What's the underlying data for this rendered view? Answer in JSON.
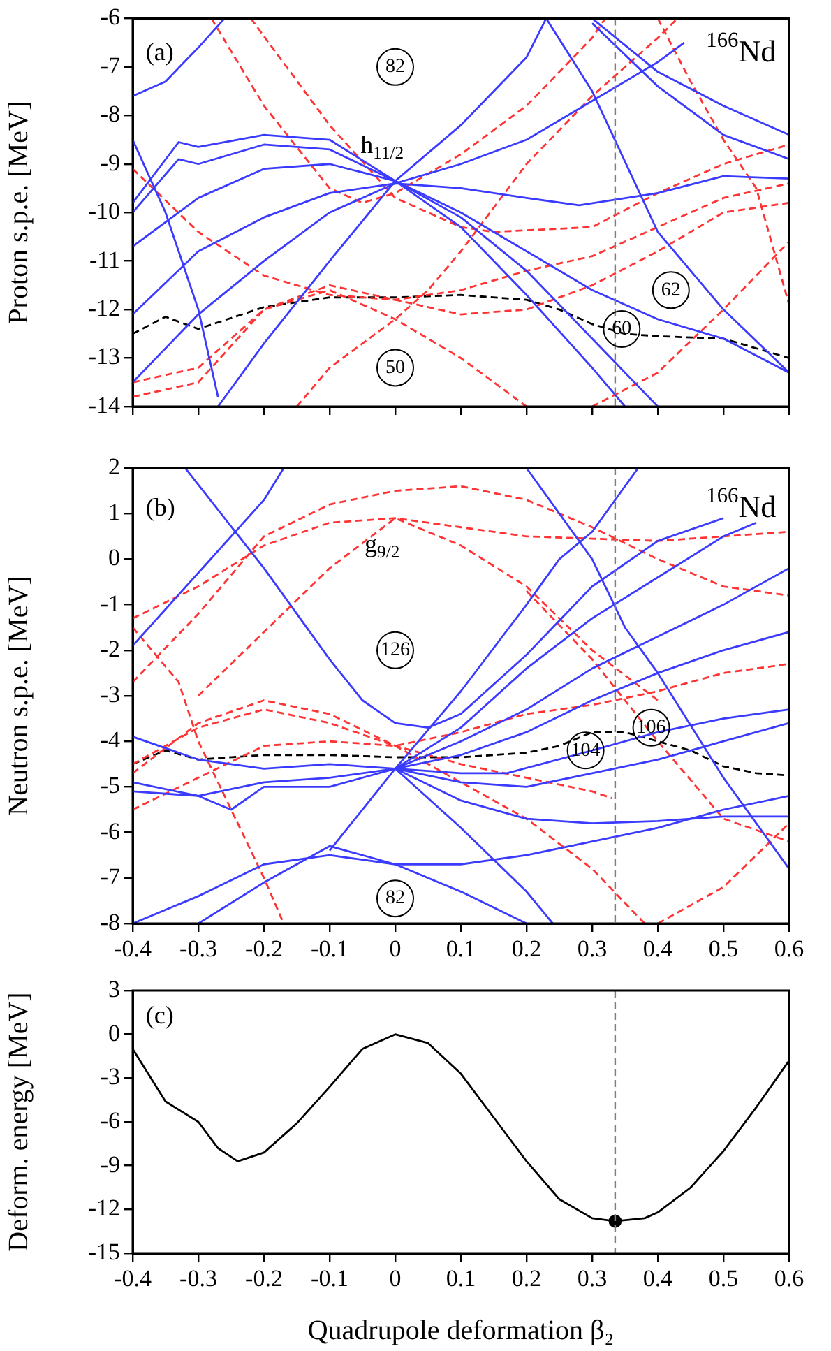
{
  "chart_data": [
    {
      "type": "line",
      "ylabel": "Proton s.p.e. [MeV]",
      "xlim": [
        -0.4,
        0.6
      ],
      "xticks": [
        -0.4,
        -0.3,
        -0.2,
        -0.1,
        0,
        0.1,
        0.2,
        0.3,
        0.4,
        0.5,
        0.6
      ],
      "ylim": [
        -14,
        -6
      ],
      "yticks": [
        -14,
        -13,
        -12,
        -11,
        -10,
        -9,
        -8,
        -7,
        -6
      ],
      "tick_labels": "y",
      "marker": "none",
      "series": [
        {
          "color": "#3b3bff",
          "line_style": "solid",
          "x": [
            -0.4,
            -0.33,
            -0.3,
            -0.2,
            -0.1,
            0,
            0.1,
            0.2,
            0.3,
            0.35
          ],
          "values": [
            -9.8,
            -8.55,
            -8.65,
            -8.4,
            -8.5,
            -9.35,
            -10.3,
            -11.7,
            -13.2,
            -14
          ]
        },
        {
          "color": "#3b3bff",
          "line_style": "solid",
          "x": [
            -0.4,
            -0.33,
            -0.3,
            -0.2,
            -0.1,
            0,
            0.1,
            0.2,
            0.3,
            0.4
          ],
          "values": [
            -10,
            -8.9,
            -9,
            -8.6,
            -8.7,
            -9.35,
            -10.1,
            -11.2,
            -12.6,
            -14
          ]
        },
        {
          "color": "#3b3bff",
          "line_style": "solid",
          "x": [
            -0.4,
            -0.3,
            -0.2,
            -0.1,
            0,
            0.1,
            0.2,
            0.3,
            0.4,
            0.5,
            0.6
          ],
          "values": [
            -10.7,
            -9.7,
            -9.1,
            -9,
            -9.35,
            -10,
            -10.8,
            -11.6,
            -12.2,
            -12.6,
            -13.3
          ]
        },
        {
          "color": "#3b3bff",
          "line_style": "solid",
          "x": [
            -0.4,
            -0.3,
            -0.2,
            -0.1,
            0,
            0.1,
            0.2,
            0.28,
            0.4,
            0.5,
            0.6
          ],
          "values": [
            -12.1,
            -10.8,
            -10.1,
            -9.6,
            -9.4,
            -9.5,
            -9.7,
            -9.85,
            -9.6,
            -9.25,
            -9.3
          ]
        },
        {
          "color": "#3b3bff",
          "line_style": "solid",
          "x": [
            -0.4,
            -0.3,
            -0.2,
            -0.1,
            0,
            0.1,
            0.2,
            0.3,
            0.4,
            0.44
          ],
          "values": [
            -13.5,
            -12.1,
            -11,
            -10,
            -9.4,
            -9,
            -8.5,
            -7.7,
            -6.9,
            -6.5
          ]
        },
        {
          "color": "#3b3bff",
          "line_style": "solid",
          "x": [
            -0.27,
            -0.2,
            -0.1,
            0,
            0.1,
            0.2,
            0.23
          ],
          "values": [
            -14,
            -12.7,
            -11,
            -9.35,
            -8.2,
            -6.8,
            -6
          ]
        },
        {
          "color": "#3b3bff",
          "line_style": "solid",
          "x": [
            -0.4,
            -0.35,
            -0.3,
            -0.27
          ],
          "values": [
            -8.5,
            -10,
            -12,
            -13.8
          ]
        },
        {
          "color": "#3b3bff",
          "line_style": "solid",
          "x": [
            -0.4,
            -0.35,
            -0.3,
            -0.26
          ],
          "values": [
            -7.6,
            -7.3,
            -6.6,
            -6
          ]
        },
        {
          "color": "#3b3bff",
          "line_style": "solid",
          "x": [
            0.23,
            0.3,
            0.4,
            0.5,
            0.6
          ],
          "values": [
            -6,
            -7.5,
            -10.4,
            -12,
            -13.3
          ]
        },
        {
          "color": "#3b3bff",
          "line_style": "solid",
          "x": [
            0.3,
            0.4,
            0.5,
            0.6
          ],
          "values": [
            -6,
            -7.1,
            -7.8,
            -8.4
          ]
        },
        {
          "color": "#3b3bff",
          "line_style": "solid",
          "x": [
            0.3,
            0.4,
            0.5,
            0.6
          ],
          "values": [
            -6.1,
            -7.4,
            -8.4,
            -8.9
          ]
        },
        {
          "color": "#ff3333",
          "line_style": "dashed",
          "x": [
            -0.28,
            -0.2,
            -0.1,
            -0.05,
            0,
            0.1,
            0.2,
            0.3,
            0.32
          ],
          "values": [
            -6,
            -7.8,
            -9.5,
            -9.8,
            -9.6,
            -8.8,
            -7.8,
            -6.4,
            -6
          ]
        },
        {
          "color": "#ff3333",
          "line_style": "dashed",
          "x": [
            -0.22,
            -0.1,
            0,
            0.1,
            0.15,
            0.3,
            0.4,
            0.5,
            0.6
          ],
          "values": [
            -6,
            -8.2,
            -9.7,
            -10.3,
            -10.4,
            -10.3,
            -9.6,
            -9,
            -8.6
          ]
        },
        {
          "color": "#ff3333",
          "line_style": "dashed",
          "x": [
            -0.4,
            -0.3,
            -0.2,
            -0.1,
            0,
            0.1,
            0.2,
            0.3,
            0.4,
            0.5,
            0.6
          ],
          "values": [
            -9.1,
            -10.4,
            -11.3,
            -11.7,
            -11.8,
            -11.6,
            -11.2,
            -10.9,
            -10.3,
            -9.7,
            -9.4
          ]
        },
        {
          "color": "#ff3333",
          "line_style": "dashed",
          "x": [
            -0.4,
            -0.3,
            -0.2,
            -0.1,
            0,
            0.1,
            0.2,
            0.3,
            0.4,
            0.5,
            0.6
          ],
          "values": [
            -13.8,
            -13.5,
            -12,
            -11.5,
            -11.8,
            -12.1,
            -12,
            -11.5,
            -10.8,
            -10,
            -9.8
          ]
        },
        {
          "color": "#ff3333",
          "line_style": "dashed",
          "x": [
            -0.4,
            -0.3,
            -0.2,
            -0.1,
            0,
            0.1,
            0.2
          ],
          "values": [
            -13.5,
            -13.2,
            -12,
            -11.6,
            -12.2,
            -13,
            -14
          ]
        },
        {
          "color": "#ff3333",
          "line_style": "dashed",
          "x": [
            -0.15,
            -0.1,
            0,
            0.05,
            0.1,
            0.2,
            0.3,
            0.4,
            0.43
          ],
          "values": [
            -14,
            -13.2,
            -12.2,
            -11.6,
            -10.8,
            -9,
            -7.6,
            -6.4,
            -6
          ]
        },
        {
          "color": "#ff3333",
          "line_style": "dashed",
          "x": [
            0.3,
            0.4,
            0.5,
            0.6
          ],
          "values": [
            -14,
            -13.3,
            -12,
            -10.6
          ]
        },
        {
          "color": "#ff3333",
          "line_style": "dashed",
          "x": [
            0.4,
            0.45,
            0.5,
            0.55,
            0.6
          ],
          "values": [
            -6,
            -7.3,
            -8.5,
            -9.5,
            -11.9
          ]
        },
        {
          "color": "#000000",
          "line_style": "dashed",
          "x": [
            -0.4,
            -0.35,
            -0.3,
            -0.2,
            -0.1,
            0,
            0.1,
            0.2,
            0.25,
            0.3,
            0.35,
            0.4,
            0.5,
            0.6
          ],
          "values": [
            -12.5,
            -12.15,
            -12.4,
            -11.95,
            -11.75,
            -11.75,
            -11.7,
            -11.8,
            -12,
            -12.3,
            -12.5,
            -12.55,
            -12.6,
            -13
          ]
        }
      ],
      "ref_lines": [
        {
          "axis": "x",
          "value": 0.335,
          "color": "#808080",
          "line_style": "dashed"
        }
      ],
      "annotations": [
        "(a)",
        {
          "text": "82",
          "x": 0,
          "y": -7
        },
        "$^{166}$Nd",
        "h$_{11/2}$",
        {
          "text": "50",
          "x": 0,
          "y": -13.2
        },
        {
          "text": "60",
          "x": 0.345,
          "y": -12.4
        },
        {
          "text": "62",
          "x": 0.42,
          "y": -11.6
        }
      ]
    },
    {
      "type": "line",
      "ylabel": "Neutron s.p.e. [MeV]",
      "xlim": [
        -0.4,
        0.6
      ],
      "xticks": [
        -0.4,
        -0.3,
        -0.2,
        -0.1,
        0,
        0.1,
        0.2,
        0.3,
        0.4,
        0.5,
        0.6
      ],
      "ylim": [
        -8,
        2
      ],
      "yticks": [
        -8,
        -7,
        -6,
        -5,
        -4,
        -3,
        -2,
        -1,
        0,
        1,
        2
      ],
      "marker": "none",
      "series": [
        {
          "color": "#3b3bff",
          "line_style": "solid",
          "x": [
            -0.4,
            -0.3,
            -0.2,
            -0.1,
            0,
            0.1,
            0.17,
            0.3,
            0.4,
            0.5,
            0.6
          ],
          "values": [
            -3.9,
            -4.4,
            -4.6,
            -4.5,
            -4.6,
            -4.7,
            -4.7,
            -4.2,
            -3.8,
            -3.5,
            -3.3
          ]
        },
        {
          "color": "#3b3bff",
          "line_style": "solid",
          "x": [
            -0.4,
            -0.3,
            -0.25,
            -0.2,
            -0.1,
            0,
            0.1,
            0.2,
            0.3,
            0.4,
            0.5,
            0.6
          ],
          "values": [
            -4.9,
            -5.2,
            -5.5,
            -5,
            -5,
            -4.6,
            -4.9,
            -5,
            -4.7,
            -4.4,
            -4,
            -3.6
          ]
        },
        {
          "color": "#3b3bff",
          "line_style": "solid",
          "x": [
            -0.4,
            -0.3,
            -0.2,
            -0.1,
            0,
            0.1,
            0.2,
            0.3,
            0.4,
            0.5,
            0.6
          ],
          "values": [
            -5.1,
            -5.2,
            -4.9,
            -4.8,
            -4.6,
            -5.3,
            -5.7,
            -5.8,
            -5.75,
            -5.65,
            -5.65
          ]
        },
        {
          "color": "#3b3bff",
          "line_style": "solid",
          "x": [
            0,
            0.1,
            0.2,
            0.3,
            0.4,
            0.5,
            0.55
          ],
          "values": [
            -4.6,
            -3.7,
            -2.4,
            -1.3,
            -0.4,
            0.5,
            0.8
          ]
        },
        {
          "color": "#3b3bff",
          "line_style": "solid",
          "x": [
            0,
            0.1,
            0.2,
            0.3,
            0.4,
            0.5,
            0.6
          ],
          "values": [
            -4.6,
            -4,
            -3.3,
            -2.4,
            -1.7,
            -1,
            -0.2
          ]
        },
        {
          "color": "#3b3bff",
          "line_style": "solid",
          "x": [
            0,
            0.1,
            0.2,
            0.3,
            0.4,
            0.5,
            0.6
          ],
          "values": [
            -4.6,
            -4.3,
            -3.8,
            -3.1,
            -2.5,
            -2,
            -1.6
          ]
        },
        {
          "color": "#3b3bff",
          "line_style": "solid",
          "x": [
            -0.1,
            0,
            0.1,
            0.2,
            0.25,
            0.3,
            0.37
          ],
          "values": [
            -6.4,
            -4.6,
            -2.9,
            -1,
            0,
            0.6,
            2
          ]
        },
        {
          "color": "#3b3bff",
          "line_style": "solid",
          "x": [
            -0.32,
            -0.2,
            -0.1,
            -0.05,
            0,
            0.05,
            0.1,
            0.2,
            0.3,
            0.4,
            0.5
          ],
          "values": [
            2,
            -0.2,
            -2.2,
            -3.1,
            -3.6,
            -3.7,
            -3.4,
            -2.1,
            -0.6,
            0.4,
            0.9
          ]
        },
        {
          "color": "#3b3bff",
          "line_style": "solid",
          "x": [
            0.2,
            0.3,
            0.35,
            0.4,
            0.5,
            0.6
          ],
          "values": [
            2,
            0,
            -1.5,
            -2.5,
            -4.8,
            -6.8
          ]
        },
        {
          "color": "#3b3bff",
          "line_style": "solid",
          "x": [
            -0.4,
            -0.3,
            -0.2,
            -0.1,
            0,
            0.1,
            0.2,
            0.3,
            0.4,
            0.5,
            0.6
          ],
          "values": [
            -8,
            -7.4,
            -6.7,
            -6.5,
            -6.7,
            -6.7,
            -6.5,
            -6.2,
            -5.9,
            -5.5,
            -5.2
          ]
        },
        {
          "color": "#3b3bff",
          "line_style": "solid",
          "x": [
            -0.3,
            -0.2,
            -0.1,
            0,
            0.1,
            0.2
          ],
          "values": [
            -8,
            -7.1,
            -6.3,
            -6.7,
            -7.3,
            -8
          ]
        },
        {
          "color": "#3b3bff",
          "line_style": "solid",
          "x": [
            0,
            0.1,
            0.2,
            0.24
          ],
          "values": [
            -4.6,
            -5.9,
            -7.3,
            -8
          ]
        },
        {
          "color": "#3b3bff",
          "line_style": "solid",
          "x": [
            -0.4,
            -0.3,
            -0.2,
            -0.17
          ],
          "values": [
            -1.9,
            -0.3,
            1.3,
            2
          ]
        },
        {
          "color": "#ff3333",
          "line_style": "dashed",
          "x": [
            -0.4,
            -0.3,
            -0.2,
            -0.1,
            0,
            0.1,
            0.2,
            0.3,
            0.4,
            0.5,
            0.6
          ],
          "values": [
            -1.3,
            -0.6,
            0.3,
            0.8,
            0.9,
            0.7,
            0.5,
            0.45,
            0.4,
            0.5,
            0.6
          ]
        },
        {
          "color": "#ff3333",
          "line_style": "dashed",
          "x": [
            -0.4,
            -0.3,
            -0.2,
            -0.1,
            0,
            0.1,
            0.2,
            0.3,
            0.4,
            0.5,
            0.6
          ],
          "values": [
            -2.7,
            -1.2,
            0.5,
            1.2,
            1.5,
            1.6,
            1.3,
            0.7,
            0,
            -0.6,
            -0.8
          ]
        },
        {
          "color": "#ff3333",
          "line_style": "dashed",
          "x": [
            -0.3,
            -0.2,
            -0.1,
            0,
            0.1,
            0.2,
            0.3,
            0.4
          ],
          "values": [
            -3,
            -1.6,
            -0.2,
            0.9,
            0.3,
            -0.6,
            -2,
            -3.1
          ]
        },
        {
          "color": "#ff3333",
          "line_style": "dashed",
          "x": [
            -0.4,
            -0.3,
            -0.2,
            -0.1,
            0,
            0.1,
            0.2,
            0.3,
            0.33
          ],
          "values": [
            -4.7,
            -3.6,
            -3.1,
            -3.4,
            -4.1,
            -4.5,
            -4.8,
            -5.1,
            -5.25
          ]
        },
        {
          "color": "#ff3333",
          "line_style": "dashed",
          "x": [
            -0.4,
            -0.3,
            -0.2,
            -0.1,
            0,
            0.1,
            0.2,
            0.3,
            0.38
          ],
          "values": [
            -4.5,
            -3.7,
            -3.3,
            -3.6,
            -4.1,
            -4.9,
            -5.7,
            -6.8,
            -8
          ]
        },
        {
          "color": "#ff3333",
          "line_style": "dashed",
          "x": [
            -0.4,
            -0.3,
            -0.2,
            -0.1,
            0,
            0.1,
            0.2,
            0.3,
            0.4,
            0.5,
            0.6
          ],
          "values": [
            -5.5,
            -4.8,
            -4.1,
            -4,
            -4.1,
            -3.8,
            -3.4,
            -3.2,
            -2.9,
            -2.5,
            -2.3
          ]
        },
        {
          "color": "#ff3333",
          "line_style": "dashed",
          "x": [
            -0.4,
            -0.33,
            -0.3,
            -0.25,
            -0.2,
            -0.17
          ],
          "values": [
            -1.5,
            -2.7,
            -4,
            -5.5,
            -7,
            -8
          ]
        },
        {
          "color": "#ff3333",
          "line_style": "dashed",
          "x": [
            0.2,
            0.3,
            0.4,
            0.5,
            0.6
          ],
          "values": [
            -0.7,
            -2.2,
            -4,
            -5.7,
            -6.2
          ]
        },
        {
          "color": "#ff3333",
          "line_style": "dashed",
          "x": [
            0.4,
            0.5,
            0.6
          ],
          "values": [
            -8,
            -7.2,
            -5.8
          ]
        },
        {
          "color": "#000000",
          "line_style": "dashed",
          "x": [
            -0.4,
            -0.35,
            -0.3,
            -0.2,
            -0.1,
            0,
            0.1,
            0.2,
            0.25,
            0.3,
            0.35,
            0.4,
            0.45,
            0.5,
            0.55,
            0.6
          ],
          "values": [
            -4.5,
            -4.2,
            -4.4,
            -4.3,
            -4.3,
            -4.35,
            -4.35,
            -4.25,
            -4.1,
            -3.8,
            -3.8,
            -4,
            -4.2,
            -4.55,
            -4.7,
            -4.75
          ]
        }
      ],
      "ref_lines": [
        {
          "axis": "x",
          "value": 0.335,
          "color": "#808080",
          "line_style": "dashed"
        }
      ],
      "annotations": [
        "(b)",
        "$^{166}$Nd",
        "g$_{9/2}$",
        {
          "text": "126",
          "x": 0,
          "y": -2
        },
        {
          "text": "104",
          "x": 0.29,
          "y": -4.2
        },
        {
          "text": "106",
          "x": 0.39,
          "y": -3.7
        },
        {
          "text": "82",
          "x": 0,
          "y": -7.45
        }
      ]
    },
    {
      "type": "line",
      "xlabel": "Quadrupole deformation β₂",
      "ylabel": "Deform. energy [MeV]",
      "xlim": [
        -0.4,
        0.6
      ],
      "xticks": [
        -0.4,
        -0.3,
        -0.2,
        -0.1,
        0,
        0.1,
        0.2,
        0.3,
        0.4,
        0.5,
        0.6
      ],
      "ylim": [
        -15,
        3
      ],
      "yticks": [
        -15,
        -12,
        -9,
        -6,
        -3,
        0,
        3
      ],
      "marker": "none",
      "series": [
        {
          "color": "#000000",
          "line_style": "solid",
          "x": [
            -0.4,
            -0.35,
            -0.3,
            -0.27,
            -0.24,
            -0.2,
            -0.15,
            -0.1,
            -0.05,
            0,
            0.05,
            0.1,
            0.15,
            0.2,
            0.25,
            0.3,
            0.335,
            0.38,
            0.4,
            0.45,
            0.5,
            0.55,
            0.6
          ],
          "values": [
            -1,
            -4.6,
            -6,
            -7.8,
            -8.7,
            -8.1,
            -6.1,
            -3.6,
            -1,
            0,
            -0.6,
            -2.7,
            -5.7,
            -8.7,
            -11.3,
            -12.6,
            -12.8,
            -12.6,
            -12.2,
            -10.5,
            -8,
            -5,
            -1.8
          ]
        },
        {
          "type": "scatter",
          "color": "#000000",
          "marker": "circle",
          "x": [
            0.335
          ],
          "values": [
            -12.8
          ]
        }
      ],
      "ref_lines": [
        {
          "axis": "x",
          "value": 0.335,
          "color": "#808080",
          "line_style": "dashed"
        }
      ],
      "annotations": [
        "(c)"
      ]
    }
  ]
}
